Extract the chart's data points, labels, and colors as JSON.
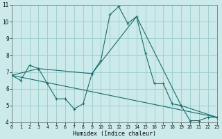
{
  "xlabel": "Humidex (Indice chaleur)",
  "background_color": "#cceaea",
  "grid_color": "#99cccc",
  "line_color": "#1a6b6b",
  "xlim": [
    0,
    23
  ],
  "ylim": [
    4,
    11
  ],
  "xticks": [
    0,
    1,
    2,
    3,
    4,
    5,
    6,
    7,
    8,
    9,
    10,
    11,
    12,
    13,
    14,
    15,
    16,
    17,
    18,
    19,
    20,
    21,
    22,
    23
  ],
  "yticks": [
    4,
    5,
    6,
    7,
    8,
    9,
    10,
    11
  ],
  "line1_x": [
    0,
    1,
    2,
    3,
    4,
    5,
    6,
    7,
    8,
    9,
    10,
    11,
    12,
    13,
    14,
    15,
    16,
    17,
    18,
    19,
    20,
    21,
    22,
    23
  ],
  "line1_y": [
    6.8,
    6.5,
    7.4,
    7.2,
    6.3,
    5.4,
    5.4,
    4.8,
    5.1,
    6.9,
    7.7,
    10.4,
    10.9,
    9.9,
    10.3,
    8.1,
    6.3,
    6.3,
    5.1,
    5.0,
    4.1,
    4.1,
    4.3,
    4.3
  ],
  "line2_x": [
    0,
    3,
    9,
    14,
    19,
    23
  ],
  "line2_y": [
    6.8,
    7.2,
    6.9,
    10.3,
    5.0,
    4.3
  ],
  "line3_x": [
    0,
    23
  ],
  "line3_y": [
    6.8,
    4.3
  ]
}
